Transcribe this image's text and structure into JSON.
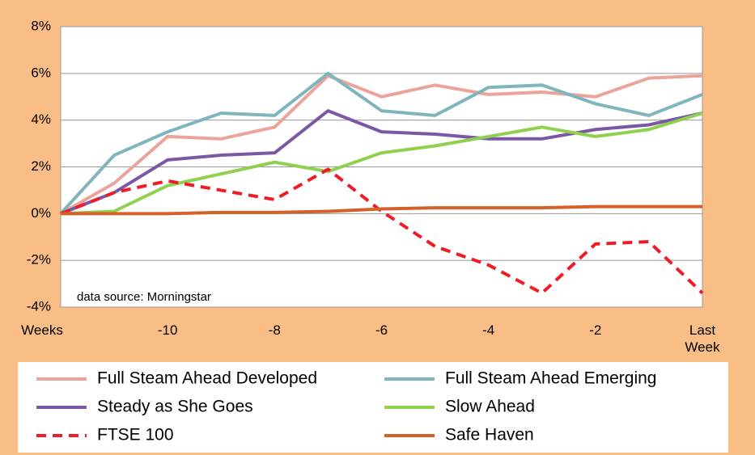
{
  "chart_data": {
    "type": "line",
    "categories": [
      "Weeks",
      null,
      "-10",
      null,
      "-8",
      null,
      "-6",
      null,
      "-4",
      null,
      "-2",
      null,
      "Last Week"
    ],
    "series": [
      {
        "name": "Full Steam Ahead Developed",
        "color": "#eba39c",
        "values": [
          0,
          1.3,
          3.3,
          3.2,
          3.7,
          5.9,
          5.0,
          5.5,
          5.1,
          5.2,
          5.0,
          5.8,
          5.9
        ]
      },
      {
        "name": "Full Steam Ahead Emerging",
        "color": "#80b5bd",
        "values": [
          0,
          2.5,
          3.5,
          4.3,
          4.2,
          6.0,
          4.4,
          4.2,
          5.4,
          5.5,
          4.7,
          4.2,
          5.1
        ]
      },
      {
        "name": "Steady as She Goes",
        "color": "#7b58a6",
        "values": [
          0,
          0.9,
          2.3,
          2.5,
          2.6,
          4.4,
          3.5,
          3.4,
          3.2,
          3.2,
          3.6,
          3.8,
          4.3
        ]
      },
      {
        "name": "Slow Ahead",
        "color": "#8fd14f",
        "values": [
          0,
          0.1,
          1.2,
          1.7,
          2.2,
          1.8,
          2.6,
          2.9,
          3.3,
          3.7,
          3.3,
          3.6,
          4.3
        ]
      },
      {
        "name": "FTSE 100",
        "color": "#ee1c25",
        "style": "dashed",
        "values": [
          0,
          0.9,
          1.4,
          1.0,
          0.6,
          1.9,
          0.1,
          -1.4,
          -2.2,
          -3.4,
          -1.3,
          -1.2,
          -3.4
        ]
      },
      {
        "name": "Safe Haven",
        "color": "#d4602a",
        "values": [
          0,
          0,
          0,
          0.05,
          0.05,
          0.1,
          0.2,
          0.25,
          0.25,
          0.25,
          0.3,
          0.3,
          0.3
        ]
      }
    ],
    "ylim": [
      -4,
      8
    ],
    "yticks": [
      {
        "value": -4,
        "label": "-4%"
      },
      {
        "value": -2,
        "label": "-2%"
      },
      {
        "value": 0,
        "label": "0%"
      },
      {
        "value": 2,
        "label": "2%"
      },
      {
        "value": 4,
        "label": "4%"
      },
      {
        "value": 6,
        "label": "6%"
      },
      {
        "value": 8,
        "label": "8%"
      }
    ],
    "grid": true,
    "annotation": "data source: Morningstar",
    "legend": "bottom"
  }
}
